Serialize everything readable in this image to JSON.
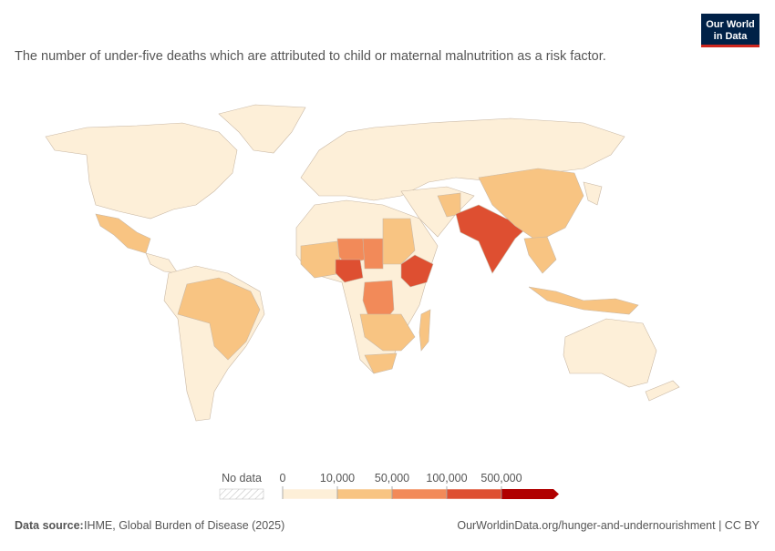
{
  "header": {
    "logo": [
      "Our World",
      "in Data"
    ],
    "subtitle": "The number of under-five deaths which are attributed to child or maternal malnutrition as a risk factor."
  },
  "legend": {
    "no_data": "No data",
    "ticks": [
      0,
      {
        "value": 10000,
        "label": "10,000"
      },
      {
        "value": 50000,
        "label": "50,000"
      },
      {
        "value": 100000,
        "label": "100,000"
      },
      {
        "value": 500000,
        "label": "500,000"
      }
    ],
    "colors": [
      "#fdefd8",
      "#f8c482",
      "#f28a59",
      "#de4f31",
      "#b00000"
    ]
  },
  "footer": {
    "source_label": "Data source:",
    "source": "IHME, Global Burden of Disease (2025)",
    "link": "OurWorldinData.org/hunger-and-undernourishment | CC BY"
  }
}
